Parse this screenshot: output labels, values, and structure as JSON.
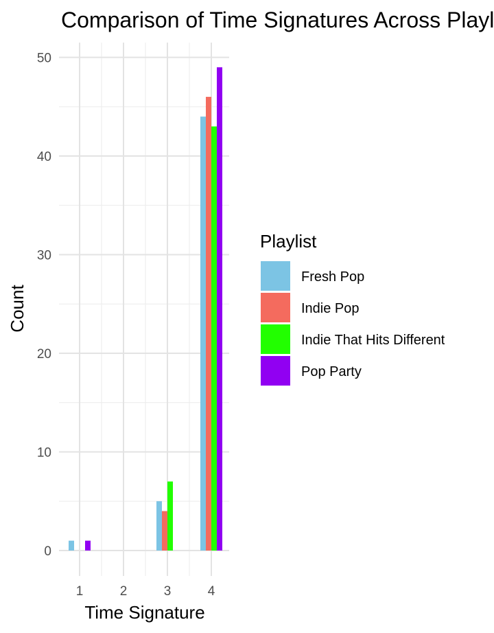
{
  "chart_data": {
    "type": "bar",
    "title": "Comparison of Time Signatures Across Playlists",
    "xlabel": "Time Signature",
    "ylabel": "Count",
    "categories": [
      "1",
      "2",
      "3",
      "4"
    ],
    "ylim": [
      0,
      52
    ],
    "yticks": [
      0,
      10,
      20,
      30,
      40,
      50
    ],
    "grid": true,
    "legend": {
      "title": "Playlist",
      "placement": "right"
    },
    "series": [
      {
        "name": "Fresh Pop",
        "color": "#7cc4e4",
        "values": [
          1,
          0,
          5,
          44
        ]
      },
      {
        "name": "Indie Pop",
        "color": "#f46b5e",
        "values": [
          0,
          0,
          4,
          46
        ]
      },
      {
        "name": "Indie That Hits Different",
        "color": "#22ff00",
        "values": [
          0,
          0,
          7,
          43
        ]
      },
      {
        "name": "Pop Party",
        "color": "#9100f2",
        "values": [
          1,
          0,
          0,
          49
        ]
      }
    ]
  }
}
